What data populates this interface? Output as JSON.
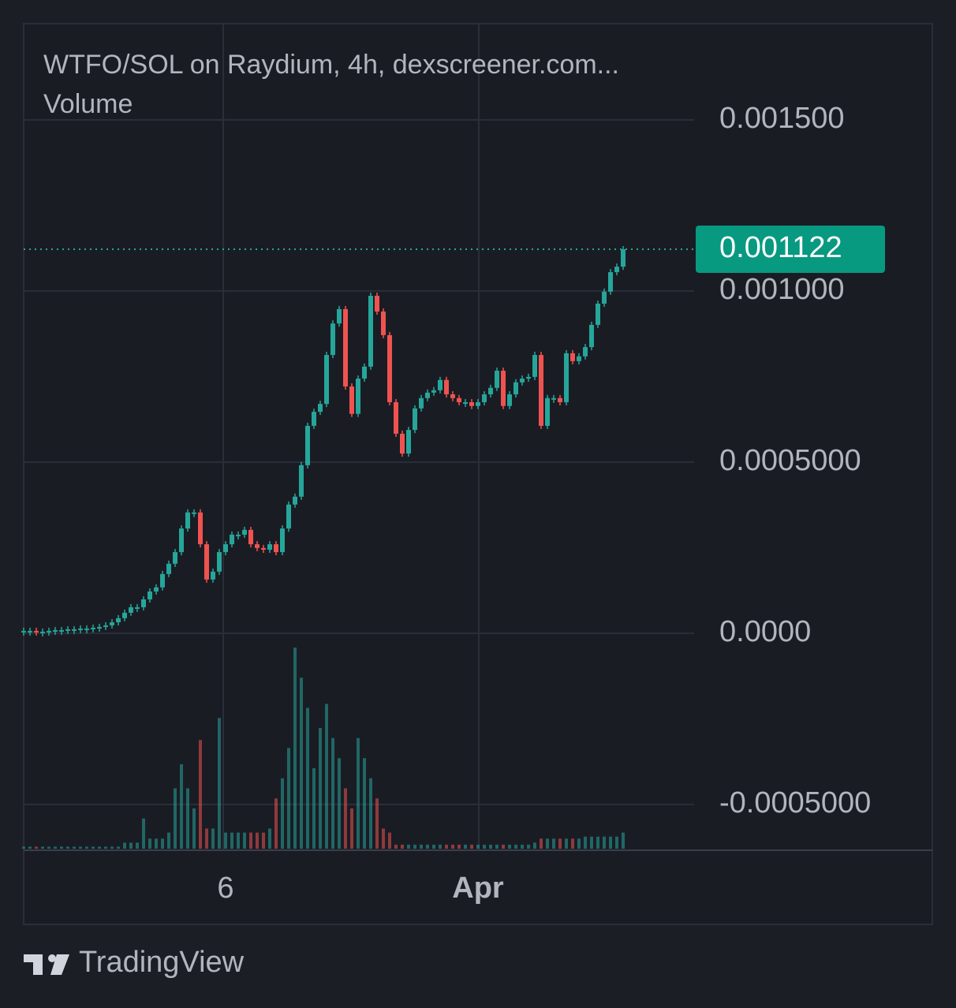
{
  "chart_data": {
    "type": "candlestick",
    "title": "WTFO/SOL on Raydium, 4h, dexscreener.com...",
    "volume_label": "Volume",
    "categories": [
      null,
      null,
      null,
      null,
      null,
      null,
      null,
      null,
      null,
      null,
      null,
      null,
      null,
      null,
      null,
      null,
      null,
      null,
      null,
      null,
      null,
      null,
      null,
      null,
      null,
      null,
      null,
      null,
      null,
      null,
      null,
      null,
      "6",
      null,
      null,
      null,
      null,
      null,
      null,
      null,
      null,
      null,
      null,
      null,
      null,
      null,
      null,
      null,
      null,
      null,
      null,
      null,
      null,
      null,
      null,
      null,
      null,
      null,
      null,
      null,
      null,
      null,
      null,
      null,
      null,
      null,
      null,
      null,
      null,
      null,
      null,
      null,
      "Apr",
      null,
      null,
      null,
      null,
      null,
      null,
      null,
      null,
      null,
      null,
      null,
      null,
      null,
      null,
      null,
      null,
      null,
      null,
      null,
      null,
      null,
      null,
      null
    ],
    "values": [
      6.9e-06,
      6.9e-06,
      4.6e-06,
      4.6e-06,
      6.9e-06,
      9.2e-06,
      9.2e-06,
      1.15e-05,
      1.15e-05,
      1.38e-05,
      1.38e-05,
      1.61e-05,
      1.84e-05,
      2.3e-05,
      3.2e-05,
      4.4e-05,
      6e-05,
      7.6e-05,
      7.6e-05,
      9.9e-05,
      0.000122,
      0.000134,
      0.000173,
      0.000203,
      0.000237,
      0.000306,
      0.000353,
      0.000353,
      0.00026,
      0.000157,
      0.00018,
      0.000237,
      0.00026,
      0.000288,
      0.000288,
      0.000302,
      0.00026,
      0.000249,
      0.000244,
      0.00026,
      0.000237,
      0.000306,
      0.000376,
      0.000399,
      0.000491,
      0.000606,
      0.000647,
      0.00067,
      0.000813,
      0.000905,
      0.000947,
      0.000721,
      0.000641,
      0.000744,
      0.000779,
      0.000986,
      0.00094,
      0.000871,
      0.000675,
      0.000583,
      0.000525,
      0.000594,
      0.000657,
      0.000687,
      0.000703,
      0.00071,
      0.00074,
      0.000698,
      0.000687,
      0.000675,
      0.000675,
      0.000664,
      0.000675,
      0.000698,
      0.000717,
      0.000767,
      0.000664,
      0.000698,
      0.000733,
      0.000744,
      0.000749,
      0.000813,
      0.000606,
      0.000687,
      0.000687,
      0.000675,
      0.000818,
      0.000795,
      0.000809,
      0.000836,
      0.000901,
      0.000963,
      0.000998,
      0.001055,
      0.001071,
      0.001122
    ],
    "volume": [
      1,
      1,
      1,
      1,
      1,
      1,
      1,
      1,
      1,
      1,
      1,
      1,
      1,
      1,
      1,
      1,
      3,
      3,
      3,
      15,
      5,
      5,
      5,
      8,
      30,
      42,
      30,
      20,
      54,
      10,
      10,
      65,
      8,
      8,
      8,
      8,
      8,
      8,
      8,
      10,
      25,
      35,
      50,
      100,
      85,
      70,
      40,
      60,
      72,
      55,
      45,
      30,
      20,
      55,
      45,
      35,
      25,
      10,
      8,
      2,
      2,
      2,
      2,
      2,
      2,
      2,
      2,
      2,
      2,
      2,
      2,
      2,
      2,
      2,
      2,
      2,
      2,
      2,
      2,
      2,
      2,
      3,
      5,
      5,
      5,
      5,
      5,
      5,
      5,
      6,
      6,
      6,
      6,
      6,
      6,
      8
    ],
    "last_price": 0.001122,
    "up_color": "#26a69a",
    "down_color": "#ef5350",
    "ylim": [
      -0.000634,
      0.001781
    ],
    "yticks": [
      {
        "value": -0.0005,
        "label": "-0.0005000"
      },
      {
        "value": 0,
        "label": "0.0000"
      },
      {
        "value": 0.0005,
        "label": "0.0005000"
      },
      {
        "value": 0.001,
        "label": "0.001000"
      },
      {
        "value": 0.0015,
        "label": "0.001500"
      }
    ],
    "grid": true
  },
  "brand": "TradingView"
}
